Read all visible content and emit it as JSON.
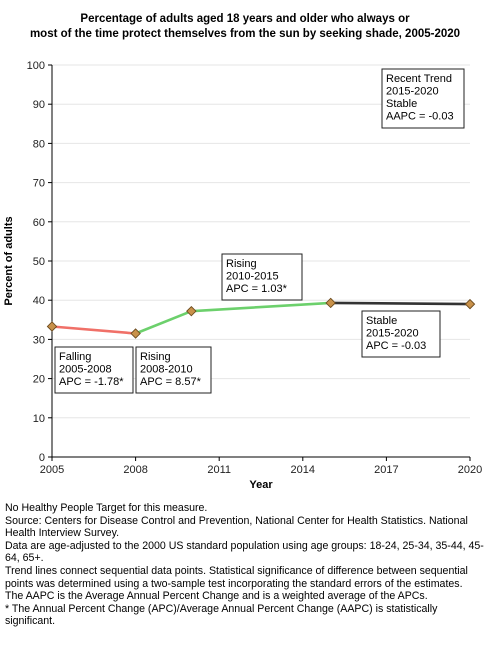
{
  "chart_data": {
    "type": "line",
    "title_lines": [
      "Percentage of adults aged 18 years and older who always or",
      "most of the time protect themselves from the sun by seeking shade, 2005-2020"
    ],
    "xlabel": "Year",
    "ylabel": "Percent of adults",
    "xlim": [
      2005,
      2020
    ],
    "ylim": [
      0,
      100
    ],
    "x_ticks": [
      2005,
      2008,
      2011,
      2014,
      2017,
      2020
    ],
    "y_ticks": [
      0,
      10,
      20,
      30,
      40,
      50,
      60,
      70,
      80,
      90,
      100
    ],
    "points": [
      {
        "x": 2005,
        "y": 33.3
      },
      {
        "x": 2008,
        "y": 31.5
      },
      {
        "x": 2010,
        "y": 37.2
      },
      {
        "x": 2015,
        "y": 39.3
      },
      {
        "x": 2020,
        "y": 39.0
      }
    ],
    "segments": [
      {
        "from": 2005,
        "to": 2008,
        "color": "#f07068"
      },
      {
        "from": 2008,
        "to": 2015,
        "color": "#6cd06c"
      },
      {
        "from": 2015,
        "to": 2020,
        "color": "#333333"
      }
    ],
    "marker_color": "#c8914a",
    "annotations": [
      {
        "lines": [
          "Falling",
          "2005-2008",
          "APC = -1.78*"
        ]
      },
      {
        "lines": [
          "Rising",
          "2008-2010",
          "APC =  8.57*"
        ]
      },
      {
        "lines": [
          "Rising",
          "2010-2015",
          "APC =  1.03*"
        ]
      },
      {
        "lines": [
          "Stable",
          "2015-2020",
          "APC = -0.03"
        ]
      },
      {
        "lines": [
          "Recent Trend",
          "2015-2020",
          "Stable",
          "AAPC = -0.03"
        ]
      }
    ]
  },
  "footnotes": [
    "No Healthy People Target for this measure.",
    "Source: Centers for Disease Control and Prevention, National Center for Health Statistics. National Health Interview Survey.",
    "Data are age-adjusted to the 2000 US standard population using age groups: 18-24, 25-34, 35-44, 45-64, 65+.",
    "Trend lines connect sequential data points. Statistical significance of difference between sequential points was determined using a two-sample test incorporating the standard errors of the estimates.",
    "The AAPC is the Average Annual Percent Change and is a weighted average of the APCs.",
    "* The Annual Percent Change (APC)/Average Annual Percent Change (AAPC) is statistically significant."
  ]
}
